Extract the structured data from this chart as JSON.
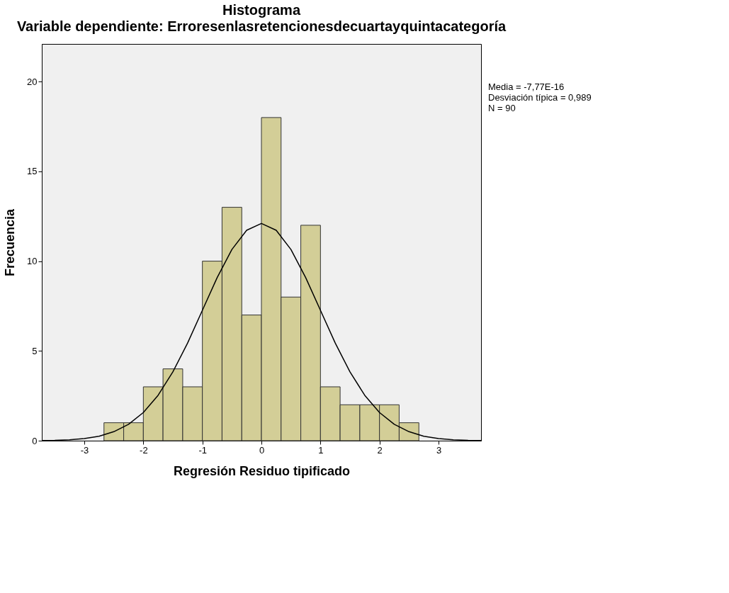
{
  "chart_data": {
    "type": "histogram",
    "title": "Histograma",
    "subtitle": "Variable dependiente: Erroresenlasretencionesdecuartayquintacategoría",
    "xlabel": "Regresión Residuo tipificado",
    "ylabel": "Frecuencia",
    "bins": [
      -2.667,
      -2.333,
      -2.0,
      -1.667,
      -1.333,
      -1.0,
      -0.667,
      -0.333,
      0.0,
      0.333,
      0.667,
      1.0,
      1.333,
      1.667,
      2.0,
      2.333,
      2.667
    ],
    "values": [
      1,
      1,
      3,
      4,
      3,
      10,
      13,
      7,
      18,
      8,
      12,
      3,
      2,
      2,
      2,
      1
    ],
    "color": "#d3ce97",
    "series": [
      {
        "type": "line",
        "color": "#000000",
        "x": [
          -3.72,
          -3.5,
          -3.25,
          -3.0,
          -2.75,
          -2.5,
          -2.25,
          -2.0,
          -1.75,
          -1.5,
          -1.25,
          -1.0,
          -0.75,
          -0.5,
          -0.25,
          0.0,
          0.25,
          0.5,
          0.75,
          1.0,
          1.25,
          1.5,
          1.75,
          2.0,
          2.25,
          2.5,
          2.75,
          3.0,
          3.25,
          3.5,
          3.72
        ],
        "values": [
          0.01,
          0.02,
          0.05,
          0.12,
          0.25,
          0.5,
          0.91,
          1.57,
          2.53,
          3.83,
          5.44,
          7.26,
          9.08,
          10.65,
          11.72,
          12.1,
          11.72,
          10.65,
          9.08,
          7.26,
          5.44,
          3.83,
          2.53,
          1.57,
          0.91,
          0.5,
          0.25,
          0.12,
          0.05,
          0.02,
          0.01
        ]
      }
    ],
    "xlim": [
      -3.72,
      3.72
    ],
    "xticks": [
      -3,
      -2,
      -1,
      0,
      1,
      2,
      3
    ],
    "ylim": [
      0,
      22.1
    ],
    "yticks": [
      0,
      5,
      10,
      15,
      20
    ],
    "grid": false,
    "annotations": [
      "Media = -7,77E-16",
      "Desviación típica = 0,989",
      "N = 90"
    ]
  }
}
